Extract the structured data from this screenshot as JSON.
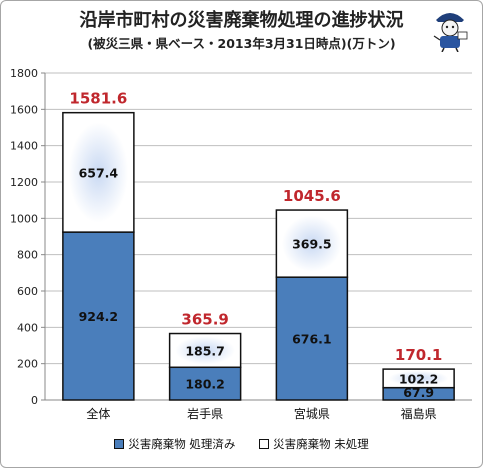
{
  "chart_data": {
    "type": "bar",
    "stacked": true,
    "title": "沿岸市町村の災害廃棄物処理の進捗状況",
    "subtitle": "(被災三県・県ベース・2013年3月31日時点)(万トン)",
    "categories": [
      "全体",
      "岩手県",
      "宮城県",
      "福島県"
    ],
    "series": [
      {
        "name": "災害廃棄物 処理済み",
        "color": "#4a7ebb",
        "values": [
          924.2,
          180.2,
          676.1,
          67.9
        ]
      },
      {
        "name": "災害廃棄物 未処理",
        "color": "#ffffff",
        "values": [
          657.4,
          185.7,
          369.5,
          102.2
        ]
      }
    ],
    "totals": [
      1581.6,
      365.9,
      1045.6,
      170.1
    ],
    "ylim": [
      0,
      1800
    ],
    "yticks": [
      0,
      200,
      400,
      600,
      800,
      1000,
      1200,
      1400,
      1600,
      1800
    ],
    "grid": true,
    "legend": "bottom",
    "colors": {
      "total_label": "#c0272d",
      "axis": "#888888",
      "grid": "#bfbfbf"
    }
  }
}
